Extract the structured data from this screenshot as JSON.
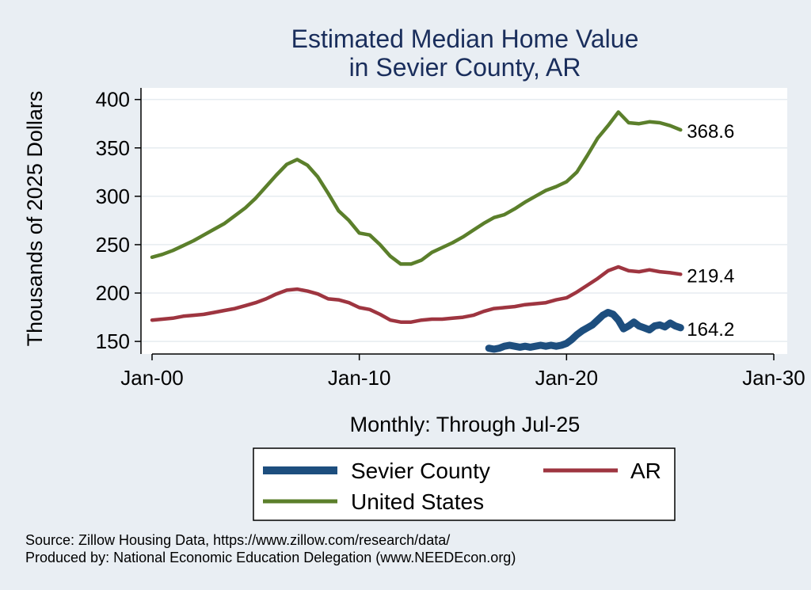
{
  "chart_data": {
    "type": "line",
    "title": [
      "Estimated Median Home Value",
      "in Sevier County, AR"
    ],
    "xlabel": "Monthly: Through Jul-25",
    "ylabel": "Thousands of 2025 Dollars",
    "x_ticks": [
      "Jan-00",
      "Jan-10",
      "Jan-20",
      "Jan-30"
    ],
    "x_tick_years": [
      2000,
      2010,
      2020,
      2030
    ],
    "xlim": [
      2000,
      2030
    ],
    "y_ticks": [
      150,
      200,
      250,
      300,
      350,
      400
    ],
    "ylim": [
      137,
      412
    ],
    "grid": true,
    "legend": {
      "position": "bottom"
    },
    "series": [
      {
        "name": "Sevier County",
        "color": "#1d4e7e",
        "end_label": "164.2",
        "points": [
          [
            "Apr-16",
            143
          ],
          [
            "Jul-16",
            142
          ],
          [
            "Oct-16",
            143
          ],
          [
            "Jan-17",
            145
          ],
          [
            "Apr-17",
            146
          ],
          [
            "Jul-17",
            145
          ],
          [
            "Oct-17",
            144
          ],
          [
            "Jan-18",
            145
          ],
          [
            "Apr-18",
            144
          ],
          [
            "Jul-18",
            145
          ],
          [
            "Oct-18",
            146
          ],
          [
            "Jan-19",
            145
          ],
          [
            "Apr-19",
            146
          ],
          [
            "Jul-19",
            145
          ],
          [
            "Oct-19",
            146
          ],
          [
            "Jan-20",
            148
          ],
          [
            "Apr-20",
            152
          ],
          [
            "Jul-20",
            157
          ],
          [
            "Oct-20",
            161
          ],
          [
            "Jan-21",
            164
          ],
          [
            "Apr-21",
            167
          ],
          [
            "Jul-21",
            172
          ],
          [
            "Oct-21",
            177
          ],
          [
            "Jan-22",
            180
          ],
          [
            "Apr-22",
            178
          ],
          [
            "Jul-22",
            172
          ],
          [
            "Oct-22",
            163
          ],
          [
            "Jan-23",
            166
          ],
          [
            "Apr-23",
            170
          ],
          [
            "Jul-23",
            166
          ],
          [
            "Oct-23",
            164
          ],
          [
            "Jan-24",
            162
          ],
          [
            "Apr-24",
            166
          ],
          [
            "Jul-24",
            167
          ],
          [
            "Oct-24",
            165
          ],
          [
            "Jan-25",
            169
          ],
          [
            "Apr-25",
            166
          ],
          [
            "Jul-25",
            164.2
          ]
        ]
      },
      {
        "name": "AR",
        "color": "#9e3540",
        "end_label": "219.4",
        "points": [
          [
            "Jan-00",
            172
          ],
          [
            "Jul-00",
            173
          ],
          [
            "Jan-01",
            174
          ],
          [
            "Jul-01",
            176
          ],
          [
            "Jan-02",
            177
          ],
          [
            "Jul-02",
            178
          ],
          [
            "Jan-03",
            180
          ],
          [
            "Jul-03",
            182
          ],
          [
            "Jan-04",
            184
          ],
          [
            "Jul-04",
            187
          ],
          [
            "Jan-05",
            190
          ],
          [
            "Jul-05",
            194
          ],
          [
            "Jan-06",
            199
          ],
          [
            "Jul-06",
            203
          ],
          [
            "Jan-07",
            204
          ],
          [
            "Jul-07",
            202
          ],
          [
            "Jan-08",
            199
          ],
          [
            "Jul-08",
            194
          ],
          [
            "Jan-09",
            193
          ],
          [
            "Jul-09",
            190
          ],
          [
            "Jan-10",
            185
          ],
          [
            "Jul-10",
            183
          ],
          [
            "Jan-11",
            178
          ],
          [
            "Jul-11",
            172
          ],
          [
            "Jan-12",
            170
          ],
          [
            "Jul-12",
            170
          ],
          [
            "Jan-13",
            172
          ],
          [
            "Jul-13",
            173
          ],
          [
            "Jan-14",
            173
          ],
          [
            "Jul-14",
            174
          ],
          [
            "Jan-15",
            175
          ],
          [
            "Jul-15",
            177
          ],
          [
            "Jan-16",
            181
          ],
          [
            "Jul-16",
            184
          ],
          [
            "Jan-17",
            185
          ],
          [
            "Jul-17",
            186
          ],
          [
            "Jan-18",
            188
          ],
          [
            "Jul-18",
            189
          ],
          [
            "Jan-19",
            190
          ],
          [
            "Jul-19",
            193
          ],
          [
            "Jan-20",
            195
          ],
          [
            "Jul-20",
            201
          ],
          [
            "Jan-21",
            208
          ],
          [
            "Jul-21",
            215
          ],
          [
            "Jan-22",
            223
          ],
          [
            "Jul-22",
            227
          ],
          [
            "Jan-23",
            223
          ],
          [
            "Jul-23",
            222
          ],
          [
            "Jan-24",
            224
          ],
          [
            "Jul-24",
            222
          ],
          [
            "Jan-25",
            221
          ],
          [
            "Jul-25",
            219.4
          ]
        ]
      },
      {
        "name": "United States",
        "color": "#5b7f2b",
        "end_label": "368.6",
        "points": [
          [
            "Jan-00",
            237
          ],
          [
            "Jul-00",
            240
          ],
          [
            "Jan-01",
            244
          ],
          [
            "Jul-01",
            249
          ],
          [
            "Jan-02",
            254
          ],
          [
            "Jul-02",
            260
          ],
          [
            "Jan-03",
            266
          ],
          [
            "Jul-03",
            272
          ],
          [
            "Jan-04",
            280
          ],
          [
            "Jul-04",
            288
          ],
          [
            "Jan-05",
            298
          ],
          [
            "Jul-05",
            310
          ],
          [
            "Jan-06",
            322
          ],
          [
            "Jul-06",
            333
          ],
          [
            "Jan-07",
            338
          ],
          [
            "Jul-07",
            332
          ],
          [
            "Jan-08",
            320
          ],
          [
            "Jul-08",
            303
          ],
          [
            "Jan-09",
            285
          ],
          [
            "Jul-09",
            275
          ],
          [
            "Jan-10",
            262
          ],
          [
            "Jul-10",
            260
          ],
          [
            "Jan-11",
            250
          ],
          [
            "Jul-11",
            238
          ],
          [
            "Jan-12",
            230
          ],
          [
            "Jul-12",
            230
          ],
          [
            "Jan-13",
            234
          ],
          [
            "Jul-13",
            242
          ],
          [
            "Jan-14",
            247
          ],
          [
            "Jul-14",
            252
          ],
          [
            "Jan-15",
            258
          ],
          [
            "Jul-15",
            265
          ],
          [
            "Jan-16",
            272
          ],
          [
            "Jul-16",
            278
          ],
          [
            "Jan-17",
            281
          ],
          [
            "Jul-17",
            287
          ],
          [
            "Jan-18",
            294
          ],
          [
            "Jul-18",
            300
          ],
          [
            "Jan-19",
            306
          ],
          [
            "Jul-19",
            310
          ],
          [
            "Jan-20",
            315
          ],
          [
            "Jul-20",
            325
          ],
          [
            "Jan-21",
            342
          ],
          [
            "Jul-21",
            360
          ],
          [
            "Jan-22",
            373
          ],
          [
            "Jul-22",
            387
          ],
          [
            "Jan-23",
            376
          ],
          [
            "Jul-23",
            375
          ],
          [
            "Jan-24",
            377
          ],
          [
            "Jul-24",
            376
          ],
          [
            "Jan-25",
            373
          ],
          [
            "Jul-25",
            368.6
          ]
        ]
      }
    ]
  },
  "source_note": {
    "line1": "Source: Zillow Housing Data, https://www.zillow.com/research/data/",
    "line2": "Produced by: National Economic Education Delegation (www.NEEDEcon.org)"
  }
}
